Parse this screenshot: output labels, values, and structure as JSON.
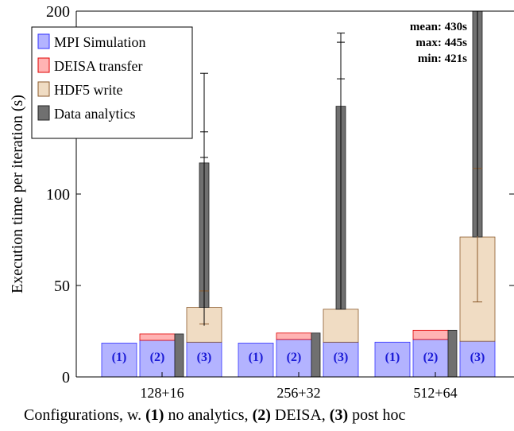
{
  "chart_data": {
    "type": "bar",
    "xlabel": "",
    "ylabel": "Execution time per iteration (s)",
    "ylim": [
      0,
      200
    ],
    "yticks": [
      0,
      50,
      100,
      200
    ],
    "categories": [
      "128+16",
      "256+32",
      "512+64"
    ],
    "bar_tags": [
      "(1)",
      "(2)",
      "(3)"
    ],
    "legend": {
      "position": "top-left",
      "entries": [
        {
          "name": "MPI Simulation",
          "color": "#b3b3ff"
        },
        {
          "name": "DEISA transfer",
          "color": "#ffb3b3"
        },
        {
          "name": "HDF5 write",
          "color": "#f0dcc3"
        },
        {
          "name": "Data analytics",
          "color": "#707070"
        }
      ]
    },
    "groups": [
      {
        "category": "128+16",
        "no_analytics": {
          "mpi": 18.5
        },
        "deisa": {
          "mpi": 20.0,
          "transfer": 3.5,
          "analytics": 23.5
        },
        "post_hoc": {
          "mpi": 19.0,
          "hdf5": 19.0,
          "hdf5_err": [
            29,
            47
          ],
          "analytics": 117,
          "analytics_err": [
            120,
            134
          ],
          "analytics_whisker": [
            28,
            166
          ]
        }
      },
      {
        "category": "256+32",
        "no_analytics": {
          "mpi": 18.5
        },
        "deisa": {
          "mpi": 20.5,
          "transfer": 3.5,
          "analytics": 24.0
        },
        "post_hoc": {
          "mpi": 19.0,
          "hdf5": 18.0,
          "analytics": 148,
          "analytics_err": [
            163,
            183
          ],
          "analytics_whisker": [
            37,
            188
          ]
        }
      },
      {
        "category": "512+64",
        "no_analytics": {
          "mpi": 19.0
        },
        "deisa": {
          "mpi": 20.5,
          "transfer": 5.0,
          "analytics": 25.5
        },
        "post_hoc": {
          "mpi": 19.5,
          "hdf5": 57.0,
          "hdf5_err": [
            41,
            114
          ],
          "analytics": 430,
          "analytics_whisker": [
            77,
            200
          ]
        }
      }
    ],
    "annotations": [
      {
        "label": "mean:",
        "value": "430s"
      },
      {
        "label": "max:",
        "value": "445s"
      },
      {
        "label": "min:",
        "value": "421s"
      }
    ]
  },
  "caption": {
    "prefix": "Configurations, w.",
    "item1_num": "(1)",
    "item1_text": "no analytics,",
    "item2_num": "(2)",
    "item2_text": "DEISA,",
    "item3_num": "(3)",
    "item3_text": "post hoc"
  }
}
